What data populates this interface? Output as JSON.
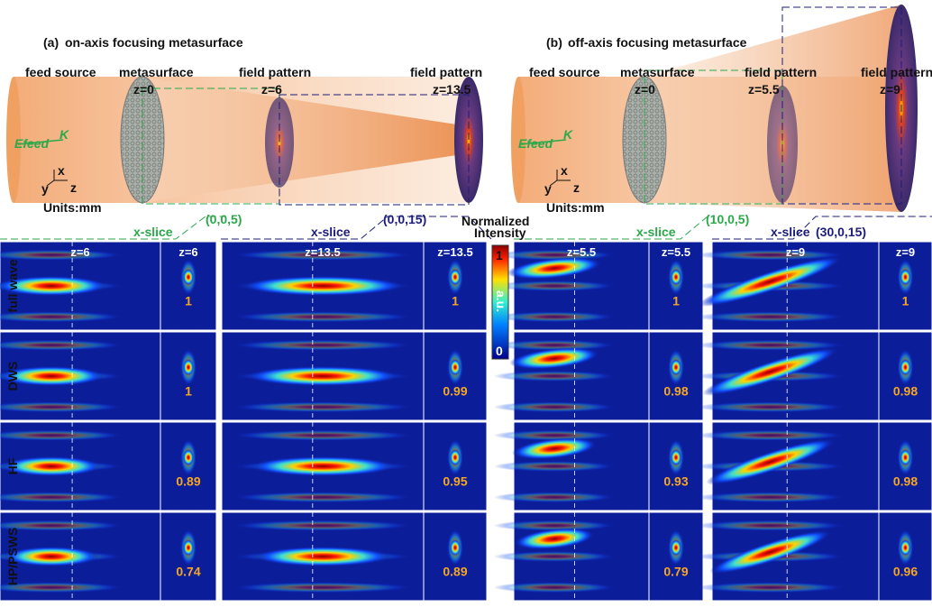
{
  "panels": [
    {
      "label": "(a)",
      "title": "on-axis focusing metasurface",
      "feed": "feed source",
      "metasurface": "metasurface",
      "z0": "z=0",
      "fields": [
        {
          "label": "field pattern",
          "z": "z=6"
        },
        {
          "label": "field pattern",
          "z": "z=13.5"
        }
      ],
      "efeed": "Efeed",
      "k": "K",
      "axes": [
        "x",
        "y",
        "z"
      ],
      "units": "Units:mm",
      "slices": [
        {
          "name": "x-slice",
          "coords": "(0,0,5)"
        },
        {
          "name": "x-slice",
          "coords": "(0,0,15)"
        }
      ]
    },
    {
      "label": "(b)",
      "title": "off-axis focusing metasurface",
      "feed": "feed source",
      "metasurface": "metasurface",
      "z0": "z=0",
      "fields": [
        {
          "label": "field pattern",
          "z": "z=5.5"
        },
        {
          "label": "field pattern",
          "z": "z=9"
        }
      ],
      "efeed": "Efeed",
      "k": "K",
      "axes": [
        "x",
        "y",
        "z"
      ],
      "units": "Units:mm",
      "slices": [
        {
          "name": "x-slice",
          "coords": "(10,0,5)"
        },
        {
          "name": "x-slice",
          "coords": "(30,0,15)"
        }
      ]
    }
  ],
  "colorbar": {
    "title": [
      "Normalized",
      "Intensity"
    ],
    "max": "1",
    "min": "0",
    "unit": "a.u."
  },
  "rows": [
    "full wave",
    "DWS",
    "HF",
    "HP/PSWS"
  ],
  "groups": [
    {
      "z": "z=6",
      "values": [
        1,
        1,
        0.89,
        0.74
      ]
    },
    {
      "z": "z=13.5",
      "values": [
        1,
        0.99,
        0.95,
        0.89
      ]
    },
    {
      "z": "z=5.5",
      "values": [
        1,
        0.98,
        0.93,
        0.79
      ]
    },
    {
      "z": "z=9",
      "values": [
        1,
        0.98,
        0.98,
        0.96
      ]
    }
  ]
}
